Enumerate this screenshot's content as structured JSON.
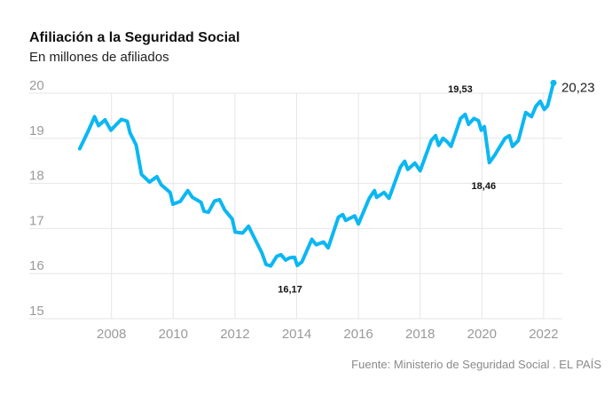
{
  "chart_data": {
    "type": "line",
    "title": "Afiliación a la Seguridad Social",
    "subtitle": "En millones de afiliados",
    "source": "Fuente: Ministerio de Seguridad Social . EL PAÍS",
    "xlabel": "",
    "ylabel": "",
    "xlim": [
      2006.8,
      2022.6
    ],
    "ylim": [
      15,
      20
    ],
    "yticks": [
      15,
      16,
      17,
      18,
      19,
      20
    ],
    "ytick_labels": [
      "15",
      "16",
      "17",
      "18",
      "19",
      "20"
    ],
    "xticks": [
      2008,
      2010,
      2012,
      2014,
      2016,
      2018,
      2020,
      2022
    ],
    "xtick_labels": [
      "2008",
      "2010",
      "2012",
      "2014",
      "2016",
      "2018",
      "2020",
      "2022"
    ],
    "grid": true,
    "color": "#0cb7f2",
    "series": [
      {
        "name": "Afiliados",
        "x": [
          2006.97,
          2007.26,
          2007.45,
          2007.58,
          2007.79,
          2007.98,
          2008.32,
          2008.51,
          2008.6,
          2008.8,
          2008.97,
          2009.23,
          2009.47,
          2009.61,
          2009.9,
          2009.99,
          2010.23,
          2010.47,
          2010.62,
          2010.9,
          2011.0,
          2011.14,
          2011.34,
          2011.5,
          2011.67,
          2011.91,
          2012.01,
          2012.25,
          2012.44,
          2012.68,
          2012.87,
          2013.01,
          2013.16,
          2013.35,
          2013.49,
          2013.64,
          2013.78,
          2013.93,
          2014.02,
          2014.17,
          2014.3,
          2014.49,
          2014.63,
          2014.87,
          2015.02,
          2015.35,
          2015.49,
          2015.59,
          2015.88,
          2016.0,
          2016.35,
          2016.52,
          2016.59,
          2016.83,
          2016.99,
          2017.36,
          2017.5,
          2017.6,
          2017.83,
          2018.0,
          2018.36,
          2018.5,
          2018.6,
          2018.74,
          2018.88,
          2019.0,
          2019.31,
          2019.46,
          2019.57,
          2019.74,
          2019.89,
          2019.98,
          2020.08,
          2020.24,
          2020.41,
          2020.56,
          2020.75,
          2020.89,
          2020.99,
          2021.18,
          2021.42,
          2021.61,
          2021.75,
          2021.89,
          2022.02,
          2022.13,
          2022.32
        ],
        "values": [
          18.77,
          19.18,
          19.48,
          19.28,
          19.41,
          19.18,
          19.42,
          19.38,
          19.12,
          18.85,
          18.2,
          18.03,
          18.15,
          17.97,
          17.8,
          17.54,
          17.6,
          17.84,
          17.69,
          17.58,
          17.38,
          17.36,
          17.61,
          17.64,
          17.41,
          17.21,
          16.92,
          16.9,
          17.05,
          16.72,
          16.46,
          16.2,
          16.17,
          16.38,
          16.42,
          16.3,
          16.35,
          16.36,
          16.18,
          16.26,
          16.46,
          16.76,
          16.64,
          16.7,
          16.57,
          17.25,
          17.31,
          17.18,
          17.28,
          17.1,
          17.67,
          17.84,
          17.69,
          17.8,
          17.67,
          18.36,
          18.49,
          18.31,
          18.45,
          18.28,
          18.95,
          19.06,
          18.84,
          19.0,
          18.92,
          18.82,
          19.44,
          19.53,
          19.31,
          19.44,
          19.39,
          19.18,
          19.26,
          18.46,
          18.62,
          18.79,
          19.0,
          19.06,
          18.82,
          18.95,
          19.57,
          19.48,
          19.71,
          19.82,
          19.64,
          19.72,
          20.23
        ]
      }
    ],
    "annotations": [
      {
        "text": "16,17",
        "x": 2013.9,
        "y": 16.17,
        "position": "below"
      },
      {
        "text": "19,53",
        "x": 2019.3,
        "y": 19.53,
        "position": "above"
      },
      {
        "text": "18,46",
        "x": 2020.0,
        "y": 18.46,
        "position": "below"
      },
      {
        "text": "20,23",
        "x": 2022.32,
        "y": 20.23,
        "position": "right"
      }
    ]
  }
}
